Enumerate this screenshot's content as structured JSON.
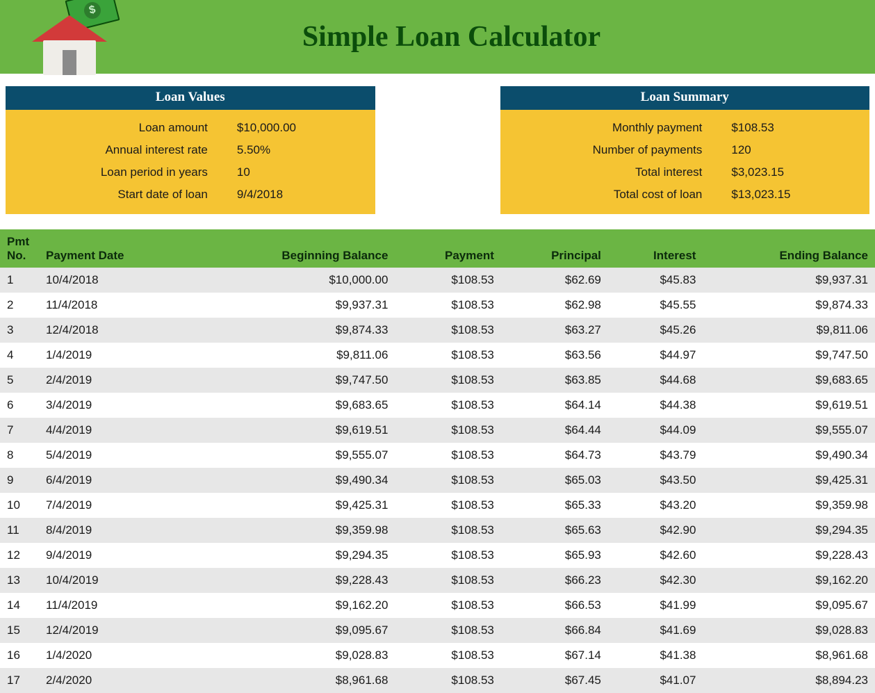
{
  "colors": {
    "header_bg": "#6bb544",
    "title_color": "#0b4d0b",
    "panel_header_bg": "#0b4d6c",
    "panel_header_text": "#ffffff",
    "panel_body_bg": "#f5c433",
    "table_header_bg": "#6bb544",
    "table_header_text": "#0b2b0b",
    "row_odd_bg": "#e7e7e7",
    "row_even_bg": "#ffffff",
    "body_bg": "#ffffff",
    "text_color": "#1a1a1a"
  },
  "typography": {
    "title_font": "Georgia serif",
    "title_size_pt": 32,
    "panel_header_font": "Georgia serif",
    "panel_header_size_pt": 14,
    "body_font": "Segoe UI / Helvetica",
    "body_size_pt": 13
  },
  "header": {
    "title": "Simple Loan Calculator",
    "icon_name": "house-money-icon"
  },
  "loan_values": {
    "title": "Loan Values",
    "rows": [
      {
        "label": "Loan amount",
        "value": "$10,000.00"
      },
      {
        "label": "Annual interest rate",
        "value": "5.50%"
      },
      {
        "label": "Loan period in years",
        "value": "10"
      },
      {
        "label": "Start date of loan",
        "value": "9/4/2018"
      }
    ]
  },
  "loan_summary": {
    "title": "Loan Summary",
    "rows": [
      {
        "label": "Monthly payment",
        "value": "$108.53"
      },
      {
        "label": "Number of payments",
        "value": "120"
      },
      {
        "label": "Total interest",
        "value": "$3,023.15"
      },
      {
        "label": "Total cost of loan",
        "value": "$13,023.15"
      }
    ]
  },
  "amortization": {
    "columns": [
      {
        "label": "Pmt No.",
        "align": "left",
        "class": "pmtno"
      },
      {
        "label": "Payment Date",
        "align": "left",
        "class": "left"
      },
      {
        "label": "Beginning Balance",
        "align": "right"
      },
      {
        "label": "Payment",
        "align": "right"
      },
      {
        "label": "Principal",
        "align": "right"
      },
      {
        "label": "Interest",
        "align": "right"
      },
      {
        "label": "Ending Balance",
        "align": "right"
      }
    ],
    "rows": [
      [
        "1",
        "10/4/2018",
        "$10,000.00",
        "$108.53",
        "$62.69",
        "$45.83",
        "$9,937.31"
      ],
      [
        "2",
        "11/4/2018",
        "$9,937.31",
        "$108.53",
        "$62.98",
        "$45.55",
        "$9,874.33"
      ],
      [
        "3",
        "12/4/2018",
        "$9,874.33",
        "$108.53",
        "$63.27",
        "$45.26",
        "$9,811.06"
      ],
      [
        "4",
        "1/4/2019",
        "$9,811.06",
        "$108.53",
        "$63.56",
        "$44.97",
        "$9,747.50"
      ],
      [
        "5",
        "2/4/2019",
        "$9,747.50",
        "$108.53",
        "$63.85",
        "$44.68",
        "$9,683.65"
      ],
      [
        "6",
        "3/4/2019",
        "$9,683.65",
        "$108.53",
        "$64.14",
        "$44.38",
        "$9,619.51"
      ],
      [
        "7",
        "4/4/2019",
        "$9,619.51",
        "$108.53",
        "$64.44",
        "$44.09",
        "$9,555.07"
      ],
      [
        "8",
        "5/4/2019",
        "$9,555.07",
        "$108.53",
        "$64.73",
        "$43.79",
        "$9,490.34"
      ],
      [
        "9",
        "6/4/2019",
        "$9,490.34",
        "$108.53",
        "$65.03",
        "$43.50",
        "$9,425.31"
      ],
      [
        "10",
        "7/4/2019",
        "$9,425.31",
        "$108.53",
        "$65.33",
        "$43.20",
        "$9,359.98"
      ],
      [
        "11",
        "8/4/2019",
        "$9,359.98",
        "$108.53",
        "$65.63",
        "$42.90",
        "$9,294.35"
      ],
      [
        "12",
        "9/4/2019",
        "$9,294.35",
        "$108.53",
        "$65.93",
        "$42.60",
        "$9,228.43"
      ],
      [
        "13",
        "10/4/2019",
        "$9,228.43",
        "$108.53",
        "$66.23",
        "$42.30",
        "$9,162.20"
      ],
      [
        "14",
        "11/4/2019",
        "$9,162.20",
        "$108.53",
        "$66.53",
        "$41.99",
        "$9,095.67"
      ],
      [
        "15",
        "12/4/2019",
        "$9,095.67",
        "$108.53",
        "$66.84",
        "$41.69",
        "$9,028.83"
      ],
      [
        "16",
        "1/4/2020",
        "$9,028.83",
        "$108.53",
        "$67.14",
        "$41.38",
        "$8,961.68"
      ],
      [
        "17",
        "2/4/2020",
        "$8,961.68",
        "$108.53",
        "$67.45",
        "$41.07",
        "$8,894.23"
      ]
    ]
  }
}
